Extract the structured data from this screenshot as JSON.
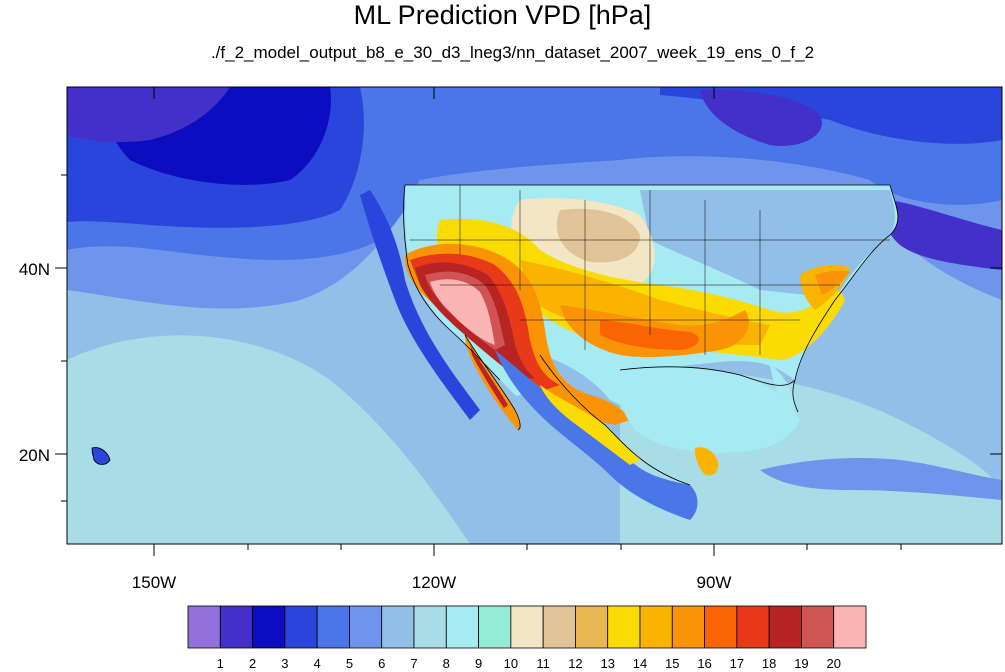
{
  "title": "ML Prediction VPD [hPa]",
  "subtitle": "./f_2_model_output_b8_e_30_d3_lneg3/nn_dataset_2007_week_19_ens_0_f_2",
  "map": {
    "lon_ticks": [
      "150W",
      "120W",
      "90W"
    ],
    "lat_ticks": [
      "40N",
      "20N"
    ]
  },
  "colorbar": {
    "labels": [
      "1",
      "2",
      "3",
      "4",
      "5",
      "6",
      "7",
      "8",
      "9",
      "10",
      "11",
      "12",
      "13",
      "14",
      "15",
      "16",
      "17",
      "18",
      "19",
      "20"
    ],
    "colors": [
      "#9370db",
      "#4230c8",
      "#0c0cc0",
      "#2a45dc",
      "#4a76e8",
      "#6e94ec",
      "#92bfe8",
      "#a8dce6",
      "#a6eaf2",
      "#94ecd6",
      "#f2e6c4",
      "#e0c498",
      "#e8b652",
      "#fadc04",
      "#fab400",
      "#fa9406",
      "#fa6402",
      "#e83a18",
      "#b82424",
      "#d05454",
      "#fab4b4"
    ]
  },
  "colors": {
    "ocean_deep": "#0c0cc0",
    "ocean_mid": "#4a76e8",
    "ocean_light": "#92bfe8",
    "ocean_pale": "#a8dce6"
  }
}
